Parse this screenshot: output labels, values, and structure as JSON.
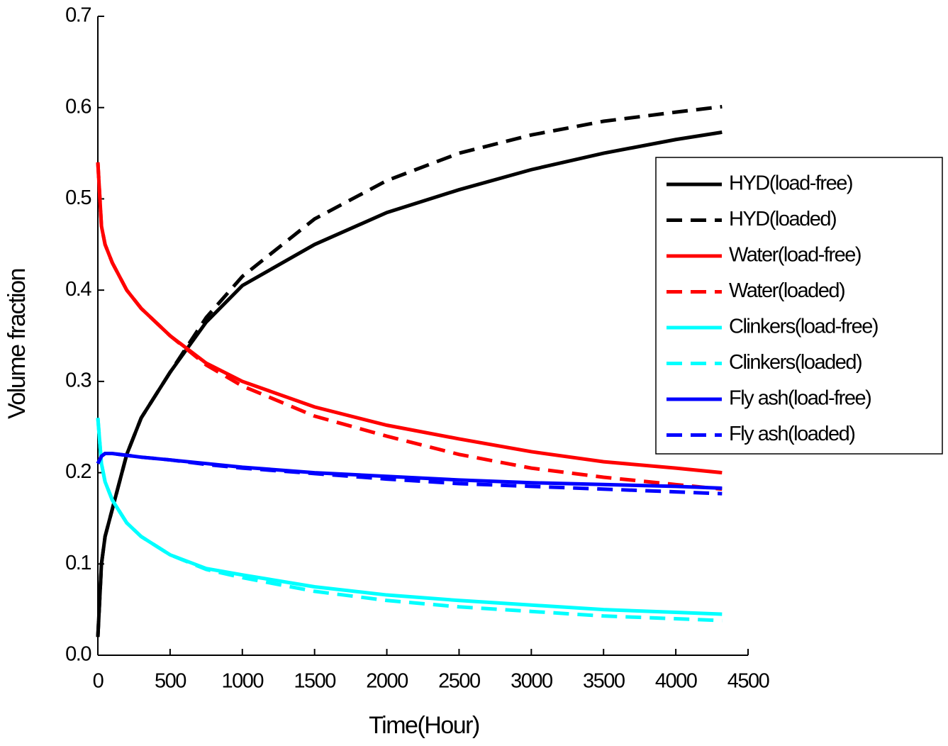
{
  "chart_data": {
    "type": "line",
    "xlabel": "Time(Hour)",
    "ylabel": "Volume fraction",
    "x": [
      0,
      25,
      50,
      100,
      200,
      300,
      500,
      750,
      1000,
      1500,
      2000,
      2500,
      3000,
      3500,
      4000,
      4320
    ],
    "series": [
      {
        "name": "HYD(load-free)",
        "color": "#000000",
        "linestyle": "solid",
        "values": [
          0.02,
          0.1,
          0.13,
          0.16,
          0.22,
          0.26,
          0.31,
          0.365,
          0.405,
          0.45,
          0.485,
          0.51,
          0.532,
          0.55,
          0.565,
          0.573
        ]
      },
      {
        "name": "HYD(loaded)",
        "color": "#000000",
        "linestyle": "dashed",
        "values": [
          0.02,
          0.1,
          0.13,
          0.16,
          0.22,
          0.26,
          0.31,
          0.37,
          0.415,
          0.478,
          0.52,
          0.55,
          0.57,
          0.585,
          0.595,
          0.601
        ]
      },
      {
        "name": "Water(load-free)",
        "color": "#ff0000",
        "linestyle": "solid",
        "values": [
          0.54,
          0.47,
          0.45,
          0.43,
          0.4,
          0.38,
          0.35,
          0.32,
          0.3,
          0.272,
          0.252,
          0.237,
          0.223,
          0.212,
          0.205,
          0.2
        ]
      },
      {
        "name": "Water(loaded)",
        "color": "#ff0000",
        "linestyle": "dashed",
        "values": [
          0.54,
          0.47,
          0.45,
          0.43,
          0.4,
          0.38,
          0.35,
          0.318,
          0.295,
          0.262,
          0.24,
          0.22,
          0.205,
          0.195,
          0.187,
          0.182
        ]
      },
      {
        "name": "Clinkers(load-free)",
        "color": "#00ffff",
        "linestyle": "solid",
        "values": [
          0.26,
          0.21,
          0.19,
          0.17,
          0.145,
          0.13,
          0.11,
          0.095,
          0.088,
          0.075,
          0.066,
          0.06,
          0.055,
          0.05,
          0.047,
          0.045
        ]
      },
      {
        "name": "Clinkers(loaded)",
        "color": "#00ffff",
        "linestyle": "dashed",
        "values": [
          0.26,
          0.21,
          0.19,
          0.17,
          0.145,
          0.13,
          0.11,
          0.094,
          0.085,
          0.07,
          0.06,
          0.053,
          0.048,
          0.043,
          0.04,
          0.038
        ]
      },
      {
        "name": "Fly ash(load-free)",
        "color": "#0000ff",
        "linestyle": "solid",
        "values": [
          0.21,
          0.218,
          0.221,
          0.221,
          0.219,
          0.217,
          0.214,
          0.21,
          0.206,
          0.2,
          0.196,
          0.192,
          0.189,
          0.187,
          0.185,
          0.183
        ]
      },
      {
        "name": "Fly ash(loaded)",
        "color": "#0000ff",
        "linestyle": "dashed",
        "values": [
          0.21,
          0.218,
          0.221,
          0.221,
          0.219,
          0.217,
          0.214,
          0.209,
          0.205,
          0.199,
          0.193,
          0.188,
          0.185,
          0.182,
          0.179,
          0.177
        ]
      }
    ],
    "xlim": [
      0,
      4500
    ],
    "xticks": [
      0,
      500,
      1000,
      1500,
      2000,
      2500,
      3000,
      3500,
      4000,
      4500
    ],
    "ylim": [
      0,
      0.7
    ],
    "yticks": [
      {
        "value": 0,
        "label": "0.0"
      },
      0.1,
      0.2,
      0.3,
      0.4,
      0.5,
      0.6,
      0.7
    ],
    "legend": "upper right",
    "grid": false
  }
}
